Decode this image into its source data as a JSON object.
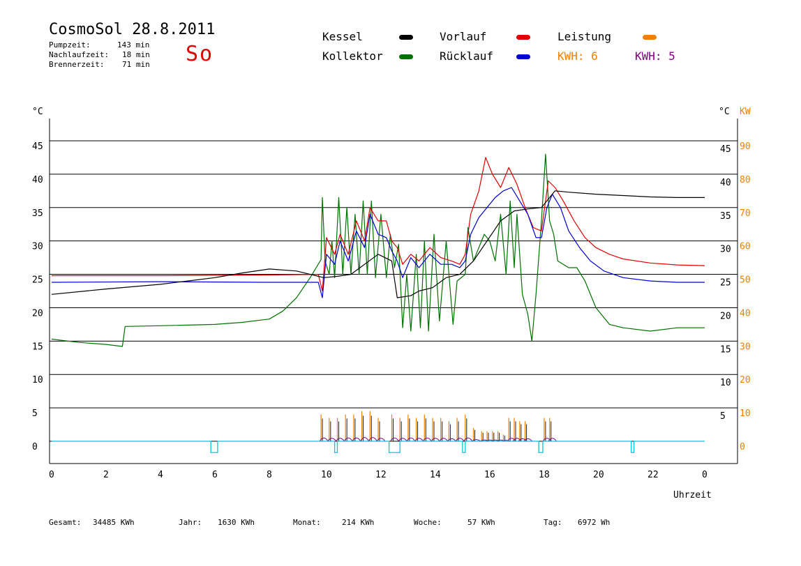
{
  "header": {
    "title": "CosmoSol 28.8.2011",
    "day": "So",
    "stats": [
      {
        "label": "Pumpzeit:",
        "value": "143 min"
      },
      {
        "label": "Nachlaufzeit:",
        "value": "18 min"
      },
      {
        "label": "Brennerzeit:",
        "value": "71 min"
      }
    ]
  },
  "legend": {
    "kessel": "Kessel",
    "kollektor": "Kollektor",
    "vorlauf": "Vorlauf",
    "ruecklauf": "Rücklauf",
    "leistung": "Leistung",
    "kwh_orange": "KWH: 6",
    "kwh_purple": "KWH: 5"
  },
  "colors": {
    "kessel": "#000000",
    "kollektor": "#007000",
    "vorlauf": "#e00000",
    "ruecklauf": "#0000d0",
    "leistung": "#f08000",
    "kwh_purple": "#800080",
    "pump": "#00c8e0"
  },
  "footer": [
    {
      "label": "Gesamt:",
      "value": "34485 KWh"
    },
    {
      "label": "Jahr:",
      "value": "1630 KWh"
    },
    {
      "label": "Monat:",
      "value": "214 KWh"
    },
    {
      "label": "Woche:",
      "value": "57 KWh"
    },
    {
      "label": "Tag:",
      "value": "6972 Wh"
    }
  ],
  "chart_data": {
    "type": "line",
    "title": "CosmoSol 28.8.2011",
    "xlabel": "Uhrzeit",
    "ylabel_left": "°C",
    "ylabel_right_temp": "°C",
    "ylabel_right_power": "KW",
    "xlim": [
      0,
      24
    ],
    "ylim": [
      -3,
      48
    ],
    "x_ticks": [
      "0",
      "2",
      "4",
      "6",
      "8",
      "10",
      "12",
      "14",
      "16",
      "18",
      "20",
      "22",
      "0"
    ],
    "y_ticks_left": [
      "45",
      "40",
      "35",
      "30",
      "25",
      "20",
      "15",
      "10",
      "5",
      "0"
    ],
    "y_ticks_right_temp": [
      "45",
      "40",
      "35",
      "30",
      "25",
      "20",
      "15",
      "10",
      "5"
    ],
    "y_ticks_right_kw": [
      "90",
      "80",
      "70",
      "60",
      "50",
      "40",
      "30",
      "20",
      "10",
      "0"
    ],
    "grid": true,
    "series": [
      {
        "name": "Kollektor",
        "color": "#007000",
        "points": [
          [
            0,
            15.3
          ],
          [
            1,
            14.8
          ],
          [
            2,
            14.5
          ],
          [
            2.6,
            14.2
          ],
          [
            2.7,
            17.2
          ],
          [
            4,
            17.3
          ],
          [
            6,
            17.5
          ],
          [
            7,
            17.8
          ],
          [
            8,
            18.3
          ],
          [
            8.5,
            19.5
          ],
          [
            9,
            21.5
          ],
          [
            9.5,
            24.5
          ],
          [
            9.9,
            27.2
          ],
          [
            9.95,
            36.5
          ],
          [
            10.05,
            27
          ],
          [
            10.2,
            25
          ],
          [
            10.3,
            30
          ],
          [
            10.4,
            24.5
          ],
          [
            10.55,
            36.5
          ],
          [
            10.7,
            25
          ],
          [
            10.85,
            35
          ],
          [
            11,
            25
          ],
          [
            11.15,
            34
          ],
          [
            11.3,
            25
          ],
          [
            11.45,
            36
          ],
          [
            11.6,
            25
          ],
          [
            11.75,
            36
          ],
          [
            11.9,
            24.5
          ],
          [
            12.1,
            34
          ],
          [
            12.3,
            24.5
          ],
          [
            12.45,
            31
          ],
          [
            12.6,
            26
          ],
          [
            12.75,
            29.5
          ],
          [
            12.9,
            17
          ],
          [
            13.05,
            25
          ],
          [
            13.2,
            16.5
          ],
          [
            13.4,
            28
          ],
          [
            13.55,
            17
          ],
          [
            13.7,
            30
          ],
          [
            13.85,
            16.5
          ],
          [
            14.05,
            31
          ],
          [
            14.25,
            18
          ],
          [
            14.5,
            30
          ],
          [
            14.75,
            17.5
          ],
          [
            14.9,
            24
          ],
          [
            15.2,
            25
          ],
          [
            15.3,
            32
          ],
          [
            15.5,
            27
          ],
          [
            15.7,
            29
          ],
          [
            15.9,
            31
          ],
          [
            16.1,
            30
          ],
          [
            16.3,
            27
          ],
          [
            16.5,
            34
          ],
          [
            16.7,
            25
          ],
          [
            16.85,
            36
          ],
          [
            17,
            26
          ],
          [
            17.1,
            34
          ],
          [
            17.3,
            22
          ],
          [
            17.5,
            19
          ],
          [
            17.65,
            15
          ],
          [
            17.8,
            22
          ],
          [
            18,
            33
          ],
          [
            18.15,
            43
          ],
          [
            18.3,
            33
          ],
          [
            18.45,
            31
          ],
          [
            18.6,
            27
          ],
          [
            19,
            26
          ],
          [
            19.3,
            26
          ],
          [
            19.6,
            24
          ],
          [
            20,
            20
          ],
          [
            20.5,
            17.5
          ],
          [
            21,
            17
          ],
          [
            22,
            16.5
          ],
          [
            23,
            17
          ],
          [
            24,
            17
          ]
        ]
      },
      {
        "name": "Vorlauf",
        "color": "#e00000",
        "points": [
          [
            0,
            24.8
          ],
          [
            4,
            24.8
          ],
          [
            8,
            24.9
          ],
          [
            9.8,
            25
          ],
          [
            9.95,
            22.5
          ],
          [
            10.1,
            30.5
          ],
          [
            10.4,
            28
          ],
          [
            10.6,
            31
          ],
          [
            10.9,
            28
          ],
          [
            11.2,
            33
          ],
          [
            11.5,
            30
          ],
          [
            11.7,
            35
          ],
          [
            12,
            33
          ],
          [
            12.3,
            33
          ],
          [
            12.5,
            30
          ],
          [
            12.7,
            29
          ],
          [
            12.9,
            26.5
          ],
          [
            13.2,
            28
          ],
          [
            13.5,
            27
          ],
          [
            13.9,
            29
          ],
          [
            14.3,
            27.5
          ],
          [
            14.7,
            27
          ],
          [
            15,
            26.5
          ],
          [
            15.2,
            28
          ],
          [
            15.4,
            34
          ],
          [
            15.7,
            37.5
          ],
          [
            15.95,
            42.5
          ],
          [
            16.2,
            40
          ],
          [
            16.5,
            38
          ],
          [
            16.8,
            41
          ],
          [
            17.1,
            38.5
          ],
          [
            17.4,
            35
          ],
          [
            17.7,
            32
          ],
          [
            18,
            31.5
          ],
          [
            18.25,
            39
          ],
          [
            18.5,
            38
          ],
          [
            18.8,
            36
          ],
          [
            19.2,
            33
          ],
          [
            19.6,
            30.5
          ],
          [
            20,
            29
          ],
          [
            20.5,
            28
          ],
          [
            21,
            27.3
          ],
          [
            22,
            26.7
          ],
          [
            23,
            26.4
          ],
          [
            24,
            26.3
          ]
        ]
      },
      {
        "name": "Rücklauf",
        "color": "#0000d0",
        "points": [
          [
            0,
            23.8
          ],
          [
            4,
            23.9
          ],
          [
            8,
            23.8
          ],
          [
            9.8,
            23.8
          ],
          [
            9.95,
            21.5
          ],
          [
            10.1,
            28
          ],
          [
            10.4,
            26.5
          ],
          [
            10.6,
            30
          ],
          [
            10.9,
            27
          ],
          [
            11.2,
            31.5
          ],
          [
            11.5,
            29
          ],
          [
            11.7,
            34
          ],
          [
            12,
            31
          ],
          [
            12.3,
            30.5
          ],
          [
            12.5,
            28.5
          ],
          [
            12.7,
            27
          ],
          [
            12.9,
            24.5
          ],
          [
            13.2,
            27.5
          ],
          [
            13.5,
            26
          ],
          [
            13.9,
            28
          ],
          [
            14.3,
            26.5
          ],
          [
            14.7,
            26.5
          ],
          [
            15,
            26
          ],
          [
            15.2,
            27
          ],
          [
            15.4,
            31
          ],
          [
            15.7,
            33.5
          ],
          [
            16,
            35
          ],
          [
            16.3,
            36.5
          ],
          [
            16.6,
            37.5
          ],
          [
            16.9,
            38
          ],
          [
            17.2,
            36
          ],
          [
            17.5,
            34
          ],
          [
            17.8,
            30.5
          ],
          [
            18,
            30.5
          ],
          [
            18.2,
            35
          ],
          [
            18.4,
            37
          ],
          [
            18.7,
            35
          ],
          [
            19,
            31.5
          ],
          [
            19.4,
            29
          ],
          [
            19.8,
            27
          ],
          [
            20.3,
            25.5
          ],
          [
            21,
            24.5
          ],
          [
            22,
            24
          ],
          [
            23,
            23.8
          ],
          [
            24,
            23.8
          ]
        ]
      },
      {
        "name": "Kessel",
        "color": "#000000",
        "points": [
          [
            0,
            22
          ],
          [
            2,
            22.8
          ],
          [
            4,
            23.5
          ],
          [
            5,
            24
          ],
          [
            6,
            24.5
          ],
          [
            7,
            25.2
          ],
          [
            8,
            25.8
          ],
          [
            9,
            25.5
          ],
          [
            10,
            24.5
          ],
          [
            10.5,
            24.7
          ],
          [
            11,
            25
          ],
          [
            11.5,
            26.5
          ],
          [
            12,
            28
          ],
          [
            12.5,
            27
          ],
          [
            12.7,
            21.5
          ],
          [
            13.2,
            21.8
          ],
          [
            13.5,
            22.5
          ],
          [
            14,
            23
          ],
          [
            14.5,
            24.5
          ],
          [
            15,
            25
          ],
          [
            15.5,
            27
          ],
          [
            16,
            30
          ],
          [
            16.5,
            33
          ],
          [
            17,
            34.5
          ],
          [
            17.5,
            34.8
          ],
          [
            18,
            35
          ],
          [
            18.3,
            36.5
          ],
          [
            18.5,
            37.5
          ],
          [
            19,
            37.3
          ],
          [
            20,
            37
          ],
          [
            21,
            36.8
          ],
          [
            22,
            36.6
          ],
          [
            23,
            36.5
          ],
          [
            24,
            36.5
          ]
        ]
      }
    ],
    "power_spikes": {
      "name": "Leistung",
      "color": "#f08000",
      "unit": "KW",
      "x": [
        9.9,
        10.2,
        10.5,
        10.8,
        11.1,
        11.4,
        11.7,
        12,
        12.5,
        12.8,
        13.1,
        13.4,
        13.7,
        14,
        14.3,
        14.6,
        14.9,
        15.2,
        15.5,
        15.8,
        16,
        16.2,
        16.4,
        16.6,
        16.8,
        17,
        17.2,
        17.4,
        18.1,
        18.3
      ],
      "y": [
        8,
        7,
        7,
        8,
        8,
        9,
        9,
        7,
        8,
        7,
        8,
        7,
        8,
        7,
        7,
        6,
        7,
        8,
        4,
        3,
        3,
        3,
        3,
        2,
        7,
        7,
        6,
        6,
        7,
        7
      ]
    },
    "pump_status": {
      "name": "Pumpe",
      "color": "#00c8e0",
      "pulses": [
        [
          5.85,
          6.1
        ],
        [
          10.4,
          10.5
        ],
        [
          12.4,
          12.8
        ],
        [
          15.1,
          15.2
        ],
        [
          17.9,
          18.05
        ],
        [
          21.3,
          21.4
        ]
      ]
    }
  }
}
